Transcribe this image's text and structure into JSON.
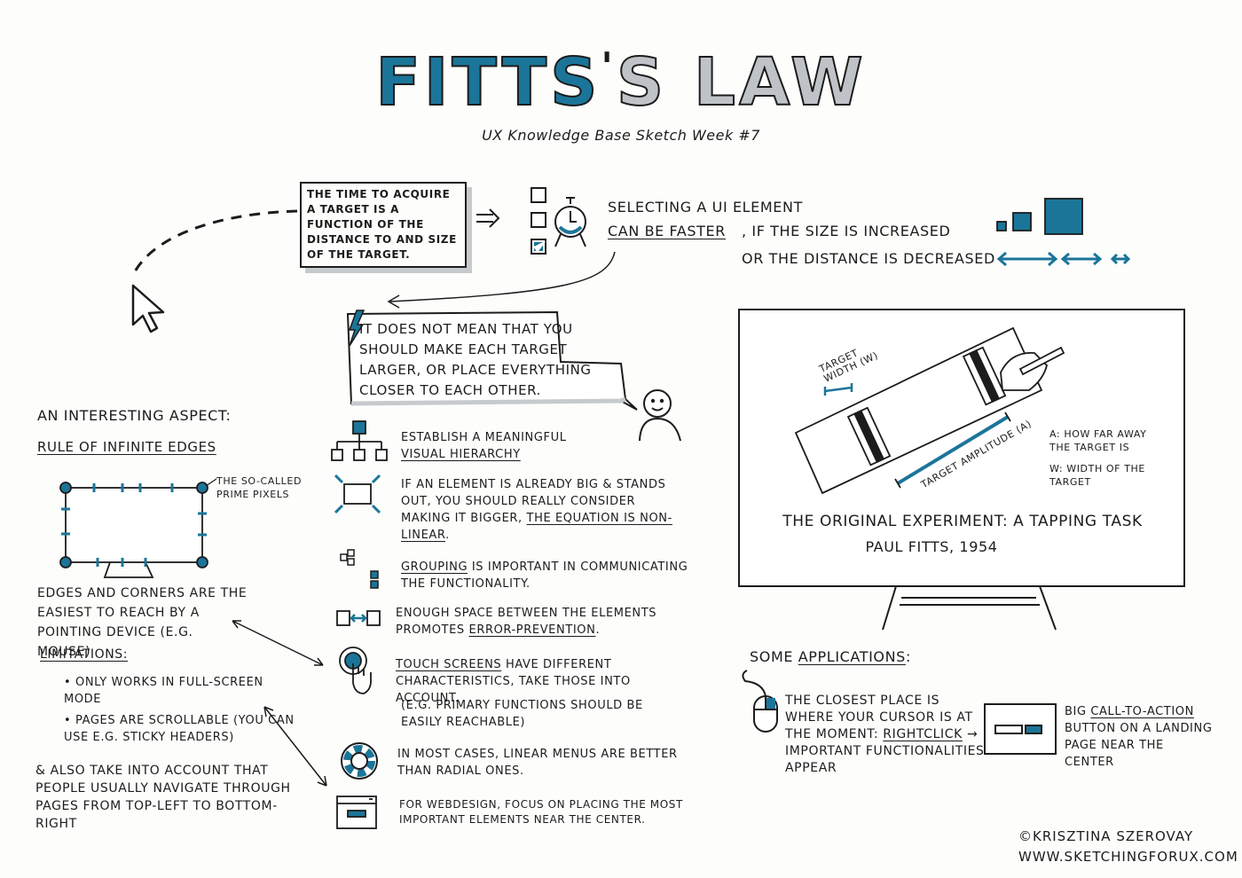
{
  "title": {
    "part1": "FITTS",
    "apostrophe": "'",
    "part2": "S",
    "part3": "LAW"
  },
  "subtitle": "UX Knowledge Base Sketch Week #7",
  "definition": "THE TIME TO ACQUIRE A TARGET IS A FUNCTION OF THE DISTANCE TO AND SIZE OF THE TARGET.",
  "selecting": {
    "line1": "SELECTING A UI ELEMENT",
    "line2": "CAN BE FASTER",
    "line3": ", IF THE SIZE IS INCREASED",
    "line4": "OR THE DISTANCE IS DECREASED"
  },
  "caution": "IT DOES NOT MEAN THAT YOU SHOULD MAKE EACH TARGET LARGER, OR PLACE EVERYTHING CLOSER TO EACH OTHER.",
  "aspect": {
    "heading": "AN INTERESTING ASPECT:",
    "rule": "RULE OF INFINITE EDGES",
    "prime": "THE SO-CALLED PRIME PIXELS",
    "edges": "EDGES AND CORNERS ARE THE EASIEST TO REACH BY A POINTING DEVICE (E.G. MOUSE)",
    "limitations": "LIMITATIONS:",
    "lim1": "• ONLY WORKS IN FULL-SCREEN MODE",
    "lim2": "• PAGES ARE SCROLLABLE (YOU CAN USE E.G. STICKY HEADERS)",
    "also": "& ALSO TAKE INTO ACCOUNT THAT PEOPLE USUALLY NAVIGATE THROUGH PAGES FROM TOP-LEFT TO BOTTOM-RIGHT"
  },
  "tips": {
    "t1a": "ESTABLISH A MEANINGFUL",
    "t1b": "VISUAL HIERARCHY",
    "t2a": "IF AN ELEMENT IS ALREADY BIG & STANDS OUT, YOU SHOULD REALLY CONSIDER MAKING IT BIGGER,",
    "t2b": "THE EQUATION IS NON-LINEAR",
    "t2c": ".",
    "t3a": "GROUPING",
    "t3b": "IS IMPORTANT IN COMMUNICATING THE FUNCTIONALITY.",
    "t4a": "ENOUGH SPACE BETWEEN THE ELEMENTS PROMOTES",
    "t4b": "ERROR-PREVENTION",
    "t4c": ".",
    "t5a": "TOUCH SCREENS",
    "t5b": "HAVE DIFFERENT CHARACTERISTICS, TAKE THOSE INTO ACCOUNT.",
    "t5c": "(E.G. PRIMARY FUNCTIONS SHOULD BE EASILY REACHABLE)",
    "t6": "IN MOST CASES, LINEAR MENUS ARE BETTER THAN RADIAL ONES.",
    "t7": "FOR WEBDESIGN, FOCUS ON PLACING THE MOST IMPORTANT ELEMENTS NEAR THE CENTER."
  },
  "experiment": {
    "target_width": "TARGET WIDTH (W)",
    "target_amplitude": "TARGET AMPLITUDE (A)",
    "legend_a": "A: HOW FAR AWAY THE TARGET IS",
    "legend_w": "W: WIDTH OF THE TARGET",
    "caption": "THE ORIGINAL EXPERIMENT: A TAPPING TASK",
    "author": "PAUL FITTS, 1954"
  },
  "applications": {
    "heading_a": "SOME",
    "heading_b": "APPLICATIONS",
    "heading_c": ":",
    "mouse_a": "THE CLOSEST PLACE IS WHERE YOUR CURSOR IS AT THE MOMENT:",
    "mouse_b": "RIGHTCLICK",
    "mouse_c": "→ IMPORTANT FUNCTIONALITIES APPEAR",
    "cta_a": "BIG",
    "cta_b": "CALL-TO-ACTION",
    "cta_c": "BUTTON ON A LANDING PAGE NEAR THE CENTER"
  },
  "footer": {
    "copyright": "©KRISZTINA SZEROVAY",
    "site": "WWW.SKETCHINGFORUX.COM"
  },
  "colors": {
    "accent": "#1b7599",
    "gray": "#c7cacd",
    "ink": "#1c1c1c"
  }
}
